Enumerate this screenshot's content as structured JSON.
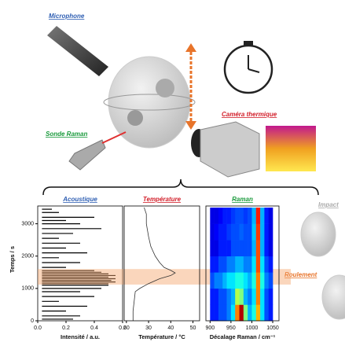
{
  "diagram": {
    "microphone": "Microphone",
    "raman_probe": "Sonde Raman",
    "camera": "Caméra thermique",
    "impact": "Impact",
    "rolling": "Roulement",
    "y_label": "Temps / s",
    "highlight": [
      1120,
      1600
    ]
  },
  "chart_data": [
    {
      "type": "sticks",
      "title": "Acoustique",
      "x_label": "Intensité / a.u.",
      "color": "#000000",
      "xlim": [
        0,
        0.6
      ],
      "xticks": [
        {
          "value": 0,
          "label": "0.0"
        },
        0.2,
        0.4,
        0.6
      ],
      "ylim": [
        0,
        3550
      ],
      "yticks": [
        0,
        1000,
        2000,
        3000
      ],
      "y": [
        50,
        150,
        300,
        450,
        600,
        750,
        900,
        1000,
        1100,
        1150,
        1200,
        1250,
        1300,
        1350,
        1400,
        1450,
        1500,
        1550,
        1650,
        1800,
        1950,
        2100,
        2250,
        2400,
        2550,
        2700,
        2850,
        3000,
        3100,
        3200,
        3350,
        3450
      ],
      "x": [
        0.25,
        0.3,
        0.2,
        0.35,
        0.15,
        0.4,
        0.3,
        0.45,
        0.5,
        0.5,
        0.55,
        0.52,
        0.55,
        0.5,
        0.55,
        0.5,
        0.45,
        0.4,
        0.2,
        0.3,
        0.15,
        0.35,
        0.2,
        0.3,
        0.15,
        0.25,
        0.45,
        0.3,
        0.2,
        0.4,
        0.15,
        0.1
      ]
    },
    {
      "type": "line",
      "title": "Température",
      "x_label": "Température / °C",
      "color": "#333333",
      "xlim": [
        19,
        53
      ],
      "xticks": [
        20,
        30,
        40,
        50
      ],
      "ylim": [
        0,
        3550
      ],
      "x": [
        23,
        23,
        23.5,
        24,
        26,
        30,
        35,
        40,
        42,
        40,
        37,
        35,
        33,
        31,
        30,
        29,
        29,
        28
      ],
      "y": [
        0,
        300,
        600,
        900,
        1000,
        1150,
        1300,
        1400,
        1480,
        1560,
        1650,
        1800,
        2000,
        2300,
        2600,
        3000,
        3300,
        3500
      ]
    },
    {
      "type": "heatmap",
      "title": "Raman",
      "x_label": "Décalage Raman / cm⁻¹",
      "xlim": [
        890,
        1065
      ],
      "xticks": [
        900,
        950,
        1000,
        1050
      ],
      "ylim": [
        0,
        3550
      ],
      "x": [
        900,
        910,
        920,
        930,
        940,
        950,
        960,
        970,
        980,
        990,
        1000,
        1010,
        1020,
        1030,
        1040,
        1050
      ],
      "y": [
        0,
        500,
        1000,
        1500,
        2000,
        2500,
        3000,
        3500
      ],
      "z": [
        [
          0.15,
          0.15,
          0.2,
          0.2,
          0.25,
          0.35,
          0.75,
          0.95,
          0.5,
          0.3,
          0.4,
          0.7,
          0.35,
          0.2,
          0.15
        ],
        [
          0.15,
          0.15,
          0.2,
          0.2,
          0.25,
          0.3,
          0.55,
          0.5,
          0.3,
          0.25,
          0.35,
          0.75,
          0.35,
          0.2,
          0.15
        ],
        [
          0.2,
          0.25,
          0.25,
          0.3,
          0.35,
          0.35,
          0.4,
          0.4,
          0.35,
          0.3,
          0.4,
          0.75,
          0.4,
          0.25,
          0.2
        ],
        [
          0.15,
          0.15,
          0.2,
          0.2,
          0.25,
          0.25,
          0.3,
          0.3,
          0.25,
          0.25,
          0.35,
          0.8,
          0.35,
          0.2,
          0.15
        ],
        [
          0.1,
          0.1,
          0.15,
          0.15,
          0.15,
          0.2,
          0.2,
          0.2,
          0.2,
          0.2,
          0.3,
          0.8,
          0.3,
          0.15,
          0.1
        ],
        [
          0.1,
          0.12,
          0.15,
          0.15,
          0.18,
          0.2,
          0.2,
          0.22,
          0.2,
          0.2,
          0.32,
          0.82,
          0.3,
          0.15,
          0.1
        ],
        [
          0.1,
          0.1,
          0.12,
          0.15,
          0.15,
          0.18,
          0.2,
          0.2,
          0.18,
          0.2,
          0.3,
          0.85,
          0.3,
          0.15,
          0.1
        ]
      ]
    }
  ]
}
